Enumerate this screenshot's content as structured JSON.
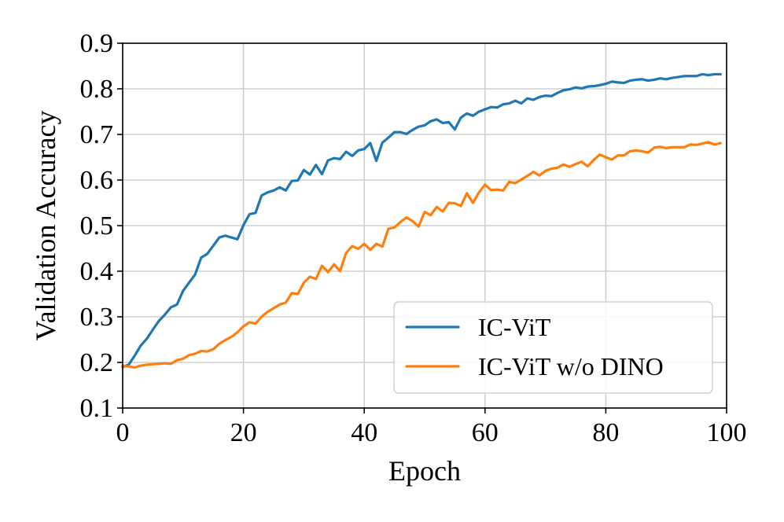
{
  "chart_data": {
    "type": "line",
    "title": "",
    "xlabel": "Epoch",
    "ylabel": "Validation Accuracy",
    "xlim": [
      0,
      100
    ],
    "ylim": [
      0.1,
      0.9
    ],
    "xticks": [
      0,
      20,
      40,
      60,
      80,
      100
    ],
    "yticks": [
      0.1,
      0.2,
      0.3,
      0.4,
      0.5,
      0.6,
      0.7,
      0.8,
      0.9
    ],
    "xtick_labels": [
      "0",
      "20",
      "40",
      "60",
      "80",
      "100"
    ],
    "ytick_labels": [
      "0.1",
      "0.2",
      "0.3",
      "0.4",
      "0.5",
      "0.6",
      "0.7",
      "0.8",
      "0.9"
    ],
    "grid": true,
    "legend_position": "bottom-right",
    "x": [
      0,
      1,
      2,
      3,
      4,
      5,
      6,
      7,
      8,
      9,
      10,
      11,
      12,
      13,
      14,
      15,
      16,
      17,
      18,
      19,
      20,
      21,
      22,
      23,
      24,
      25,
      26,
      27,
      28,
      29,
      30,
      31,
      32,
      33,
      34,
      35,
      36,
      37,
      38,
      39,
      40,
      41,
      42,
      43,
      44,
      45,
      46,
      47,
      48,
      49,
      50,
      51,
      52,
      53,
      54,
      55,
      56,
      57,
      58,
      59,
      60,
      61,
      62,
      63,
      64,
      65,
      66,
      67,
      68,
      69,
      70,
      71,
      72,
      73,
      74,
      75,
      76,
      77,
      78,
      79,
      80,
      81,
      82,
      83,
      84,
      85,
      86,
      87,
      88,
      89,
      90,
      91,
      92,
      93,
      94,
      95,
      96,
      97,
      98,
      99
    ],
    "series": [
      {
        "name": "IC-ViT",
        "color": "#1f77b4",
        "values": [
          0.19,
          0.195,
          0.215,
          0.237,
          0.252,
          0.272,
          0.291,
          0.305,
          0.321,
          0.327,
          0.357,
          0.375,
          0.393,
          0.43,
          0.438,
          0.456,
          0.474,
          0.478,
          0.474,
          0.47,
          0.501,
          0.525,
          0.528,
          0.566,
          0.573,
          0.577,
          0.584,
          0.577,
          0.598,
          0.599,
          0.622,
          0.612,
          0.633,
          0.613,
          0.643,
          0.648,
          0.646,
          0.662,
          0.653,
          0.665,
          0.668,
          0.681,
          0.642,
          0.682,
          0.693,
          0.705,
          0.705,
          0.701,
          0.71,
          0.717,
          0.72,
          0.729,
          0.733,
          0.725,
          0.727,
          0.711,
          0.737,
          0.746,
          0.741,
          0.75,
          0.755,
          0.76,
          0.759,
          0.766,
          0.768,
          0.774,
          0.768,
          0.779,
          0.776,
          0.782,
          0.785,
          0.784,
          0.791,
          0.797,
          0.799,
          0.803,
          0.801,
          0.805,
          0.806,
          0.808,
          0.811,
          0.816,
          0.814,
          0.813,
          0.818,
          0.82,
          0.821,
          0.818,
          0.82,
          0.823,
          0.821,
          0.824,
          0.826,
          0.828,
          0.828,
          0.828,
          0.832,
          0.83,
          0.832,
          0.832
        ]
      },
      {
        "name": "IC-ViT w/o DINO",
        "color": "#ff7f0e",
        "values": [
          0.193,
          0.191,
          0.189,
          0.193,
          0.195,
          0.196,
          0.197,
          0.198,
          0.197,
          0.205,
          0.208,
          0.216,
          0.219,
          0.225,
          0.224,
          0.229,
          0.241,
          0.249,
          0.256,
          0.266,
          0.279,
          0.288,
          0.285,
          0.3,
          0.311,
          0.319,
          0.327,
          0.331,
          0.352,
          0.35,
          0.375,
          0.388,
          0.383,
          0.412,
          0.398,
          0.415,
          0.4,
          0.44,
          0.455,
          0.449,
          0.46,
          0.447,
          0.46,
          0.454,
          0.493,
          0.496,
          0.508,
          0.518,
          0.51,
          0.498,
          0.53,
          0.523,
          0.541,
          0.531,
          0.55,
          0.549,
          0.543,
          0.571,
          0.55,
          0.573,
          0.59,
          0.578,
          0.579,
          0.577,
          0.596,
          0.593,
          0.601,
          0.609,
          0.618,
          0.61,
          0.62,
          0.625,
          0.627,
          0.634,
          0.629,
          0.635,
          0.64,
          0.63,
          0.644,
          0.656,
          0.65,
          0.645,
          0.654,
          0.654,
          0.663,
          0.665,
          0.663,
          0.66,
          0.671,
          0.673,
          0.67,
          0.672,
          0.672,
          0.672,
          0.678,
          0.677,
          0.68,
          0.683,
          0.678,
          0.681
        ]
      }
    ]
  }
}
